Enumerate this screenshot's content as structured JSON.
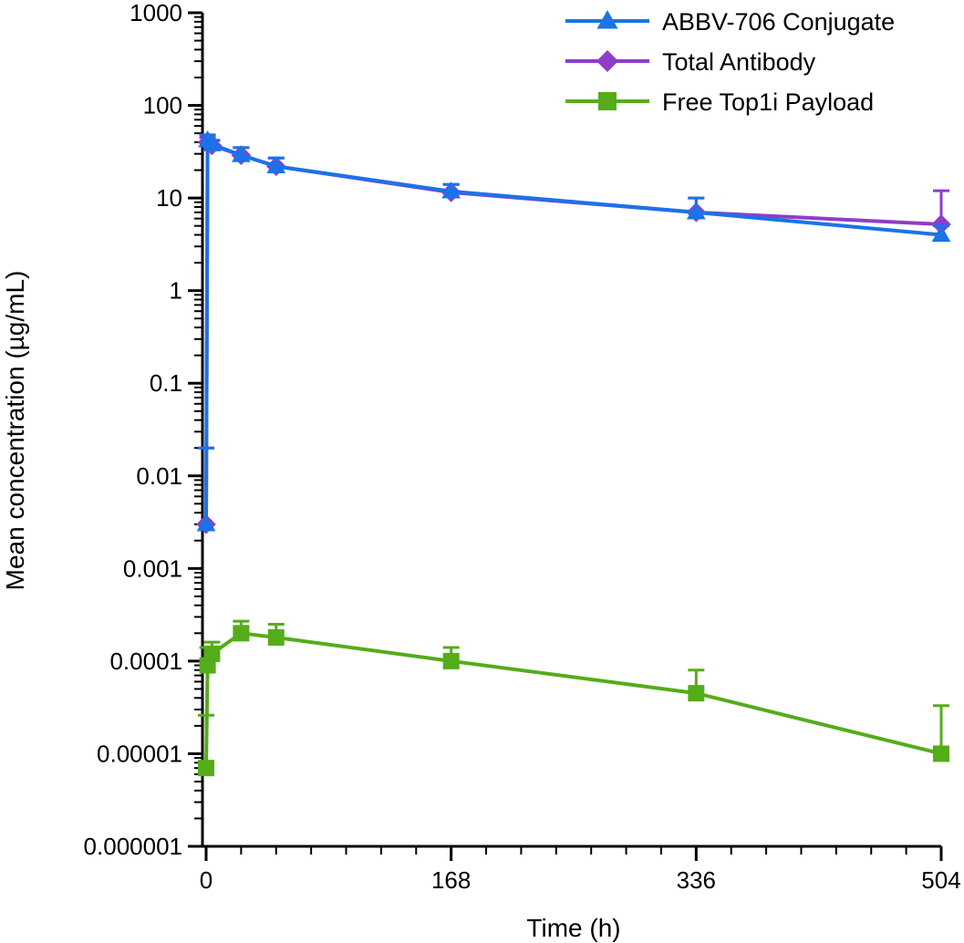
{
  "chart_data": {
    "type": "line",
    "title": "",
    "xlabel": "Time (h)",
    "ylabel": "Mean concentration (µg/mL)",
    "x_ticks": [
      0,
      168,
      336,
      504
    ],
    "x_tick_labels": [
      "0",
      "168",
      "336",
      "504"
    ],
    "xlim": [
      0,
      504
    ],
    "y_scale": "log",
    "ylim": [
      1e-06,
      1000
    ],
    "y_ticks": [
      1e-06,
      1e-05,
      0.0001,
      0.001,
      0.01,
      0.1,
      1,
      10,
      100,
      1000
    ],
    "y_tick_labels": [
      "0.000001",
      "0.00001",
      "0.0001",
      "0.001",
      "0.01",
      "0.1",
      "1",
      "10",
      "100",
      "1000"
    ],
    "grid": false,
    "legend_position": "top-right",
    "series": [
      {
        "name": "Free Top1i Payload",
        "color": "#55ac1a",
        "marker": "square",
        "x": [
          0,
          1,
          4,
          24,
          48,
          168,
          336,
          504
        ],
        "y": [
          7e-06,
          9e-05,
          0.00012,
          0.0002,
          0.00018,
          0.0001,
          4.5e-05,
          1e-05
        ],
        "error_upper": [
          2.6e-05,
          0.00014,
          0.00016,
          0.00027,
          0.00025,
          0.00014,
          8e-05,
          3.3e-05
        ]
      },
      {
        "name": "Total Antibody",
        "color": "#8e3dc9",
        "marker": "diamond",
        "x": [
          0,
          1,
          4,
          24,
          48,
          168,
          336,
          504
        ],
        "y": [
          0.003,
          40,
          37,
          29,
          22,
          11.5,
          7,
          5.2
        ],
        "error_upper": [
          0.02,
          45,
          42,
          35,
          27,
          14,
          10,
          12
        ]
      },
      {
        "name": "ABBV-706 Conjugate",
        "color": "#1a73e8",
        "marker": "triangle",
        "x": [
          0,
          1,
          4,
          24,
          48,
          168,
          336,
          504
        ],
        "y": [
          0.003,
          42,
          38,
          29,
          22,
          11.8,
          7,
          4
        ],
        "error_upper": [
          0.02,
          48,
          42,
          35,
          27,
          14,
          10,
          5
        ]
      }
    ],
    "legend": [
      {
        "name": "ABBV-706 Conjugate",
        "color": "#1a73e8",
        "marker": "triangle"
      },
      {
        "name": "Total Antibody",
        "color": "#8e3dc9",
        "marker": "diamond"
      },
      {
        "name": "Free Top1i Payload",
        "color": "#55ac1a",
        "marker": "square"
      }
    ]
  }
}
